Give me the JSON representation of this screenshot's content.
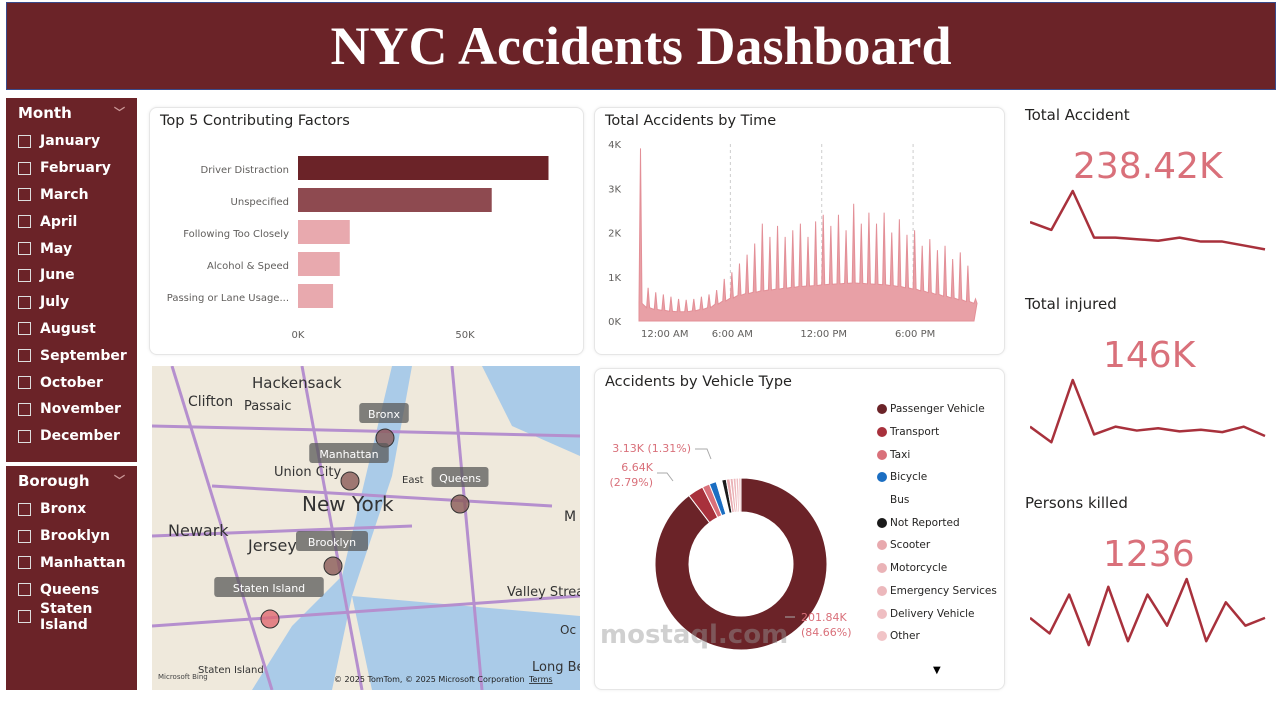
{
  "header": {
    "title": "NYC Accidents Dashboard"
  },
  "colors": {
    "brand": "#6b2328",
    "accent": "#d9707a",
    "light": "#e8a9ae"
  },
  "month_slicer": {
    "title": "Month",
    "options": [
      "January",
      "February",
      "March",
      "April",
      "May",
      "June",
      "July",
      "August",
      "September",
      "October",
      "November",
      "December"
    ]
  },
  "borough_slicer": {
    "title": "Borough",
    "options": [
      "Bronx",
      "Brooklyn",
      "Manhattan",
      "Queens",
      "Staten Island"
    ]
  },
  "factors": {
    "title": "Top 5 Contributing Factors",
    "chart_data": {
      "type": "bar",
      "orientation": "horizontal",
      "categories": [
        "Driver Distraction",
        "Unspecified",
        "Following Too Closely",
        "Alcohol & Speed",
        "Passing or Lane Usage..."
      ],
      "values": [
        75000,
        58000,
        15500,
        12500,
        10500
      ],
      "colors": [
        "#6b2328",
        "#8e4a50",
        "#e8a9ae",
        "#e8a9ae",
        "#e8a9ae"
      ],
      "xticks": [
        "0K",
        "50K"
      ],
      "xlim": [
        0,
        80000
      ]
    }
  },
  "time": {
    "title": "Total Accidents by Time",
    "chart_data": {
      "type": "area",
      "yticks": [
        "0K",
        "1K",
        "2K",
        "3K",
        "4K"
      ],
      "ylim": [
        0,
        4000
      ],
      "xticks": [
        "12:00 AM",
        "6:00 AM",
        "12:00 PM",
        "6:00 PM"
      ],
      "x_hours": [
        0,
        0.5,
        1,
        1.5,
        2,
        2.5,
        3,
        3.5,
        4,
        4.5,
        5,
        5.5,
        6,
        6.5,
        7,
        7.5,
        8,
        8.5,
        9,
        9.5,
        10,
        10.5,
        11,
        11.5,
        12,
        12.5,
        13,
        13.5,
        14,
        14.5,
        15,
        15.5,
        16,
        16.5,
        17,
        17.5,
        18,
        18.5,
        19,
        19.5,
        20,
        20.5,
        21,
        21.5,
        22
      ],
      "peaks": [
        3900,
        750,
        650,
        600,
        550,
        500,
        480,
        500,
        550,
        600,
        700,
        950,
        1100,
        1300,
        1500,
        1750,
        2200,
        1900,
        2150,
        1900,
        2050,
        2200,
        1900,
        2250,
        2400,
        2150,
        2400,
        2050,
        2650,
        2200,
        2450,
        2200,
        2450,
        2000,
        2300,
        1950,
        2050,
        1700,
        1850,
        1600,
        1700,
        1400,
        1550,
        1250,
        500
      ],
      "base": [
        400,
        300,
        260,
        240,
        220,
        210,
        210,
        230,
        260,
        300,
        380,
        450,
        520,
        580,
        620,
        650,
        680,
        700,
        720,
        740,
        760,
        780,
        790,
        800,
        820,
        830,
        840,
        850,
        860,
        850,
        840,
        830,
        820,
        800,
        780,
        750,
        720,
        680,
        640,
        600,
        560,
        520,
        480,
        440,
        400
      ]
    }
  },
  "vehicle": {
    "title": "Accidents by Vehicle Type",
    "chart_data": {
      "type": "donut",
      "labels": [
        "Passenger Vehicle",
        "Transport",
        "Taxi",
        "Bicycle",
        "Bus",
        "Not Reported",
        "Scooter",
        "Motorcycle",
        "Emergency Services",
        "Delivery Vehicle",
        "Other"
      ],
      "values": [
        201840,
        6640,
        3130,
        3000,
        2400,
        1900,
        1600,
        1300,
        1200,
        1100,
        1000
      ],
      "colors": [
        "#6b2328",
        "#a8313c",
        "#d9707a",
        "#1b6ec2",
        "#ffffff",
        "#1a1a1a",
        "#e8a9ae",
        "#eab3b7",
        "#ecb8bc",
        "#efbec2",
        "#f1c4c7"
      ],
      "data_labels": [
        {
          "value": "201.84K",
          "pct": "(84.66%)"
        },
        {
          "value": "6.64K",
          "pct": "(2.79%)"
        },
        {
          "value": "3.13K (1.31%)"
        }
      ]
    }
  },
  "kpis": [
    {
      "title": "Total Accident",
      "value": "238.42K",
      "spark": [
        5,
        4,
        9,
        3,
        3,
        2.8,
        2.6,
        3,
        2.5,
        2.5,
        2,
        1.5
      ]
    },
    {
      "title": "Total injured",
      "value": "146K",
      "spark": [
        3,
        1,
        9,
        2,
        3,
        2.5,
        2.8,
        2.4,
        2.6,
        2.3,
        3,
        1.8
      ]
    },
    {
      "title": "Persons killed",
      "value": "1236",
      "spark": [
        4,
        2,
        7,
        0.5,
        8,
        1,
        7,
        3,
        9,
        1,
        6,
        3,
        4
      ]
    }
  ],
  "map": {
    "labels": [
      "Bronx",
      "Manhattan",
      "Queens",
      "Brooklyn",
      "Staten Island"
    ],
    "places": [
      "Hackensack",
      "Clifton",
      "Passaic",
      "Union City",
      "New York",
      "Newark",
      "Jersey",
      "Valley Stream",
      "Long Be",
      "Staten Island",
      "East",
      "Oc",
      "M"
    ],
    "credit": "© 2025 TomTom, © 2025 Microsoft Corporation",
    "terms": "Terms",
    "logo": "Microsoft Bing"
  },
  "watermark": "mostaql.com"
}
